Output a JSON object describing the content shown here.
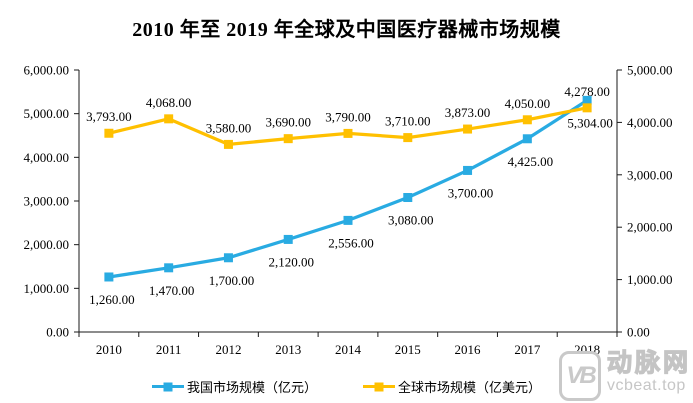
{
  "title": "2010 年至 2019 年全球及中国医疗器械市场规模",
  "colors": {
    "china_series": "#29ABE2",
    "global_series": "#FFC000",
    "axis": "#1a1a1a",
    "watermark": "#c9c9c9"
  },
  "chart_data": {
    "type": "line",
    "title": "2010 年至 2019 年全球及中国医疗器械市场规模",
    "categories": [
      "2010",
      "2011",
      "2012",
      "2013",
      "2014",
      "2015",
      "2016",
      "2017",
      "2018"
    ],
    "series": [
      {
        "id": "china-market",
        "name": "我国市场规模（亿元）",
        "axis": "left",
        "color": "#29ABE2",
        "marker": "square",
        "label_position": "below",
        "values": [
          1260,
          1470,
          1700,
          2120,
          2556,
          3080,
          3700,
          4425,
          5304
        ],
        "data_labels": [
          "1,260.00",
          "1,470.00",
          "1,700.00",
          "2,120.00",
          "2,556.00",
          "3,080.00",
          "3,700.00",
          "4,425.00",
          "5,304.00"
        ]
      },
      {
        "id": "global-market",
        "name": "全球市场规模（亿美元）",
        "axis": "right",
        "color": "#FFC000",
        "marker": "square",
        "label_position": "above",
        "values": [
          3793,
          4068,
          3580,
          3690,
          3790,
          3710,
          3873,
          4050,
          4278
        ],
        "data_labels": [
          "3,793.00",
          "4,068.00",
          "3,580.00",
          "3,690.00",
          "3,790.00",
          "3,710.00",
          "3,873.00",
          "4,050.00",
          "4,278.00"
        ]
      }
    ],
    "left_axis": {
      "min": 0,
      "max": 6000,
      "step": 1000,
      "tick_labels": [
        "0.00",
        "1,000.00",
        "2,000.00",
        "3,000.00",
        "4,000.00",
        "5,000.00",
        "6,000.00"
      ]
    },
    "right_axis": {
      "min": 0,
      "max": 5000,
      "step": 1000,
      "tick_labels": [
        "0.00",
        "1,000.00",
        "2,000.00",
        "3,000.00",
        "4,000.00",
        "5,000.00"
      ]
    },
    "xlabel": "",
    "ylabel": "",
    "grid": false,
    "legend_position": "bottom"
  },
  "watermark": {
    "logo_text": "VB",
    "brand": "动脉网",
    "url": "vcbeat.top"
  }
}
